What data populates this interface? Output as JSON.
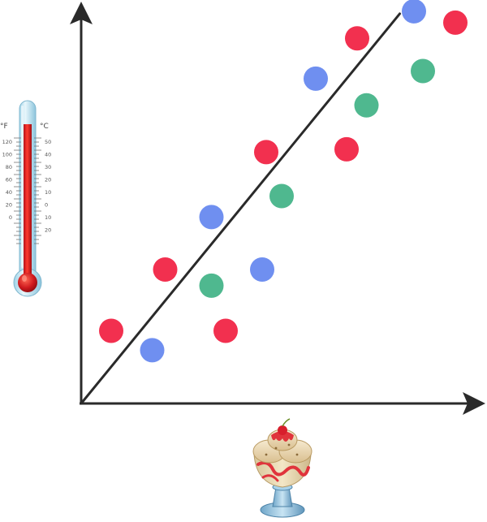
{
  "colors": {
    "red": "#f2304f",
    "blue": "#6f8ff0",
    "green": "#4fb88f",
    "axis": "#2a2a2a"
  },
  "icons": {
    "y_axis": "thermometer-icon",
    "x_axis": "ice-cream-sundae-icon"
  },
  "thermometer": {
    "fahrenheit_unit": "°F",
    "celsius_unit": "°C",
    "fahrenheit_ticks": [
      "120",
      "100",
      "80",
      "60",
      "40",
      "20",
      "0"
    ],
    "celsius_ticks": [
      "50",
      "40",
      "30",
      "20",
      "10",
      "0",
      "10",
      "20"
    ]
  },
  "chart_data": {
    "type": "scatter",
    "title": "",
    "xlabel": "",
    "ylabel": "",
    "xlim": [
      0,
      100
    ],
    "ylim": [
      0,
      100
    ],
    "grid": false,
    "legend": "none",
    "series": [
      {
        "color": "red",
        "points": [
          [
            7.4,
            18.0
          ],
          [
            20.7,
            33.2
          ],
          [
            35.6,
            18.0
          ],
          [
            45.6,
            62.3
          ],
          [
            65.4,
            63.0
          ],
          [
            68.0,
            90.5
          ],
          [
            92.2,
            94.4
          ]
        ]
      },
      {
        "color": "blue",
        "points": [
          [
            17.5,
            13.2
          ],
          [
            32.1,
            46.2
          ],
          [
            44.6,
            33.2
          ],
          [
            57.8,
            80.5
          ],
          [
            82.0,
            97.2
          ]
        ]
      },
      {
        "color": "green",
        "points": [
          [
            32.1,
            29.2
          ],
          [
            49.4,
            51.4
          ],
          [
            70.3,
            73.9
          ],
          [
            84.2,
            82.4
          ]
        ]
      }
    ],
    "trend_line": {
      "from": [
        0,
        0
      ],
      "to": [
        78.5,
        96.6
      ]
    }
  }
}
